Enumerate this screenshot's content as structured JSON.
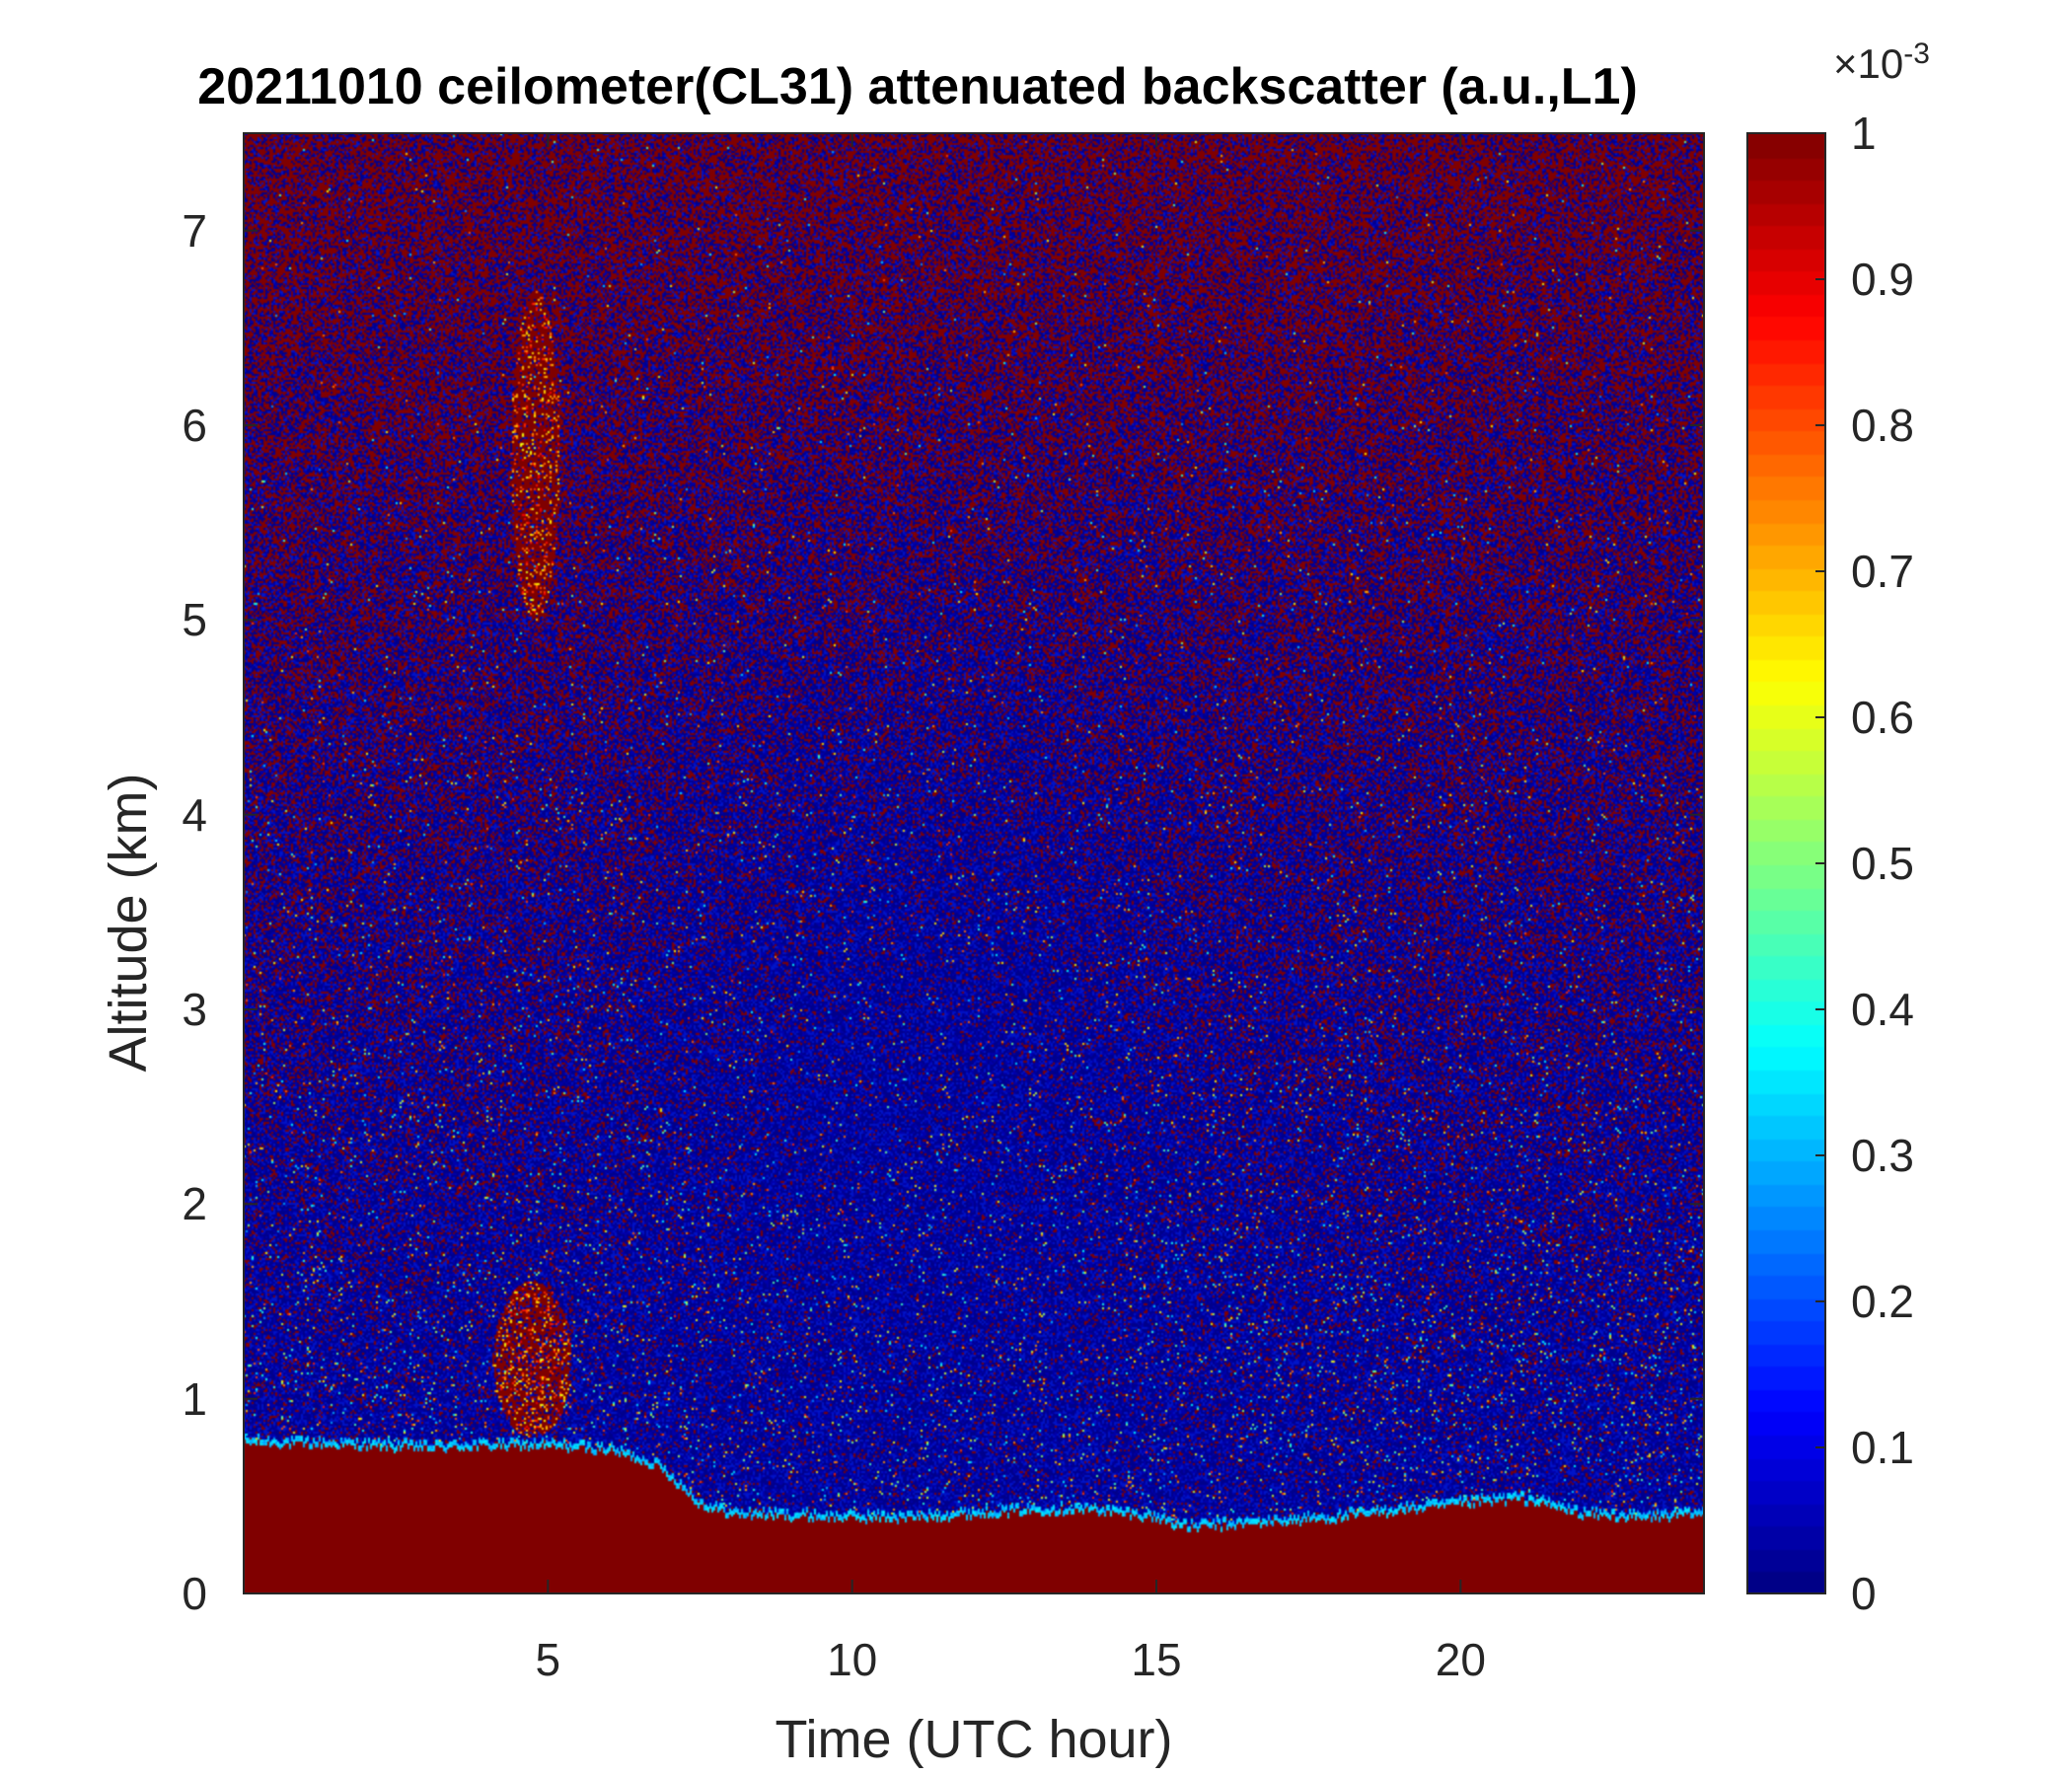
{
  "chart_data": {
    "type": "heatmap",
    "title": "20211010 ceilometer(CL31) attenuated backscatter (a.u.,L1)",
    "xlabel": "Time (UTC hour)",
    "ylabel": "Altitude (km)",
    "xlim": [
      0,
      24
    ],
    "ylim": [
      0,
      7.5
    ],
    "x_ticks": [
      "5",
      "10",
      "15",
      "20"
    ],
    "y_ticks": [
      "0",
      "1",
      "2",
      "3",
      "4",
      "5",
      "6",
      "7"
    ],
    "colorbar": {
      "colormap": "jet",
      "range": [
        0,
        0.001
      ],
      "ticks": [
        "0",
        "0.1",
        "0.2",
        "0.3",
        "0.4",
        "0.5",
        "0.6",
        "0.7",
        "0.8",
        "0.9",
        "1"
      ],
      "exponent_label": "×10",
      "exponent": "-3"
    },
    "boundary_layer_top_km": {
      "x": [
        0,
        1,
        2,
        3,
        4,
        5,
        6,
        6.8,
        7.5,
        8,
        9,
        10,
        11,
        12,
        13,
        14,
        15,
        15.5,
        16,
        17,
        18,
        19,
        20,
        21,
        22,
        23,
        24
      ],
      "y": [
        0.77,
        0.76,
        0.75,
        0.74,
        0.75,
        0.75,
        0.73,
        0.65,
        0.45,
        0.4,
        0.39,
        0.38,
        0.38,
        0.4,
        0.42,
        0.42,
        0.38,
        0.33,
        0.34,
        0.36,
        0.38,
        0.42,
        0.45,
        0.48,
        0.4,
        0.38,
        0.4
      ]
    },
    "features": [
      {
        "name": "elevated aerosol plume",
        "x_range": [
          4.4,
          5.2
        ],
        "y_range": [
          5.0,
          6.7
        ]
      },
      {
        "name": "low cloud / aerosol patch",
        "x_range": [
          4.1,
          5.4
        ],
        "y_range": [
          0.8,
          1.6
        ]
      }
    ]
  }
}
